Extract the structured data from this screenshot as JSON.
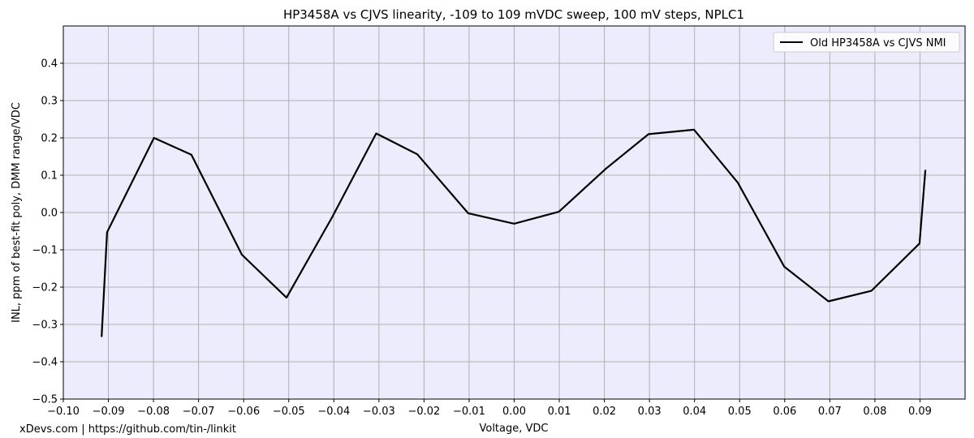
{
  "chart_data": {
    "type": "line",
    "title": "HP3458A vs CJVS linearity, -109 to 109 mVDC sweep, 100 mV steps, NPLC1",
    "xlabel": "Voltage, VDC",
    "ylabel": "INL, ppm of best-fit poly, DMM range/VDC",
    "xlim": [
      -0.1,
      0.1
    ],
    "ylim": [
      -0.5,
      0.5
    ],
    "xticks": [
      "−0.10",
      "−0.09",
      "−0.08",
      "−0.07",
      "−0.06",
      "−0.05",
      "−0.04",
      "−0.03",
      "−0.02",
      "−0.01",
      "0.00",
      "0.01",
      "0.02",
      "0.03",
      "0.04",
      "0.05",
      "0.06",
      "0.07",
      "0.08",
      "0.09"
    ],
    "xtick_values": [
      -0.1,
      -0.09,
      -0.08,
      -0.07,
      -0.06,
      -0.05,
      -0.04,
      -0.03,
      -0.02,
      -0.01,
      0.0,
      0.01,
      0.02,
      0.03,
      0.04,
      0.05,
      0.06,
      0.07,
      0.08,
      0.09
    ],
    "yticks": [
      "−0.5",
      "−0.4",
      "−0.3",
      "−0.2",
      "−0.1",
      "0.0",
      "0.1",
      "0.2",
      "0.3",
      "0.4"
    ],
    "ytick_values": [
      -0.5,
      -0.4,
      -0.3,
      -0.2,
      -0.1,
      0.0,
      0.1,
      0.2,
      0.3,
      0.4
    ],
    "grid": true,
    "legend_position": "top-right",
    "series": [
      {
        "name": "Old HP3458A vs CJVS NMI",
        "color": "#000000",
        "x": [
          -0.0915,
          -0.0903,
          -0.0799,
          -0.0716,
          -0.0604,
          -0.0505,
          -0.0404,
          -0.0306,
          -0.0215,
          -0.0102,
          0.0,
          0.0099,
          0.0204,
          0.0298,
          0.0399,
          0.0496,
          0.0599,
          0.0697,
          0.0792,
          0.0899,
          0.0912
        ],
        "y": [
          -0.333,
          -0.053,
          0.2,
          0.155,
          -0.113,
          -0.228,
          -0.013,
          0.212,
          0.156,
          -0.002,
          -0.03,
          0.002,
          0.118,
          0.21,
          0.222,
          0.08,
          -0.145,
          -0.238,
          -0.21,
          -0.083,
          0.114
        ]
      }
    ],
    "annotations": [
      "xDevs.com | https://github.com/tin-/linkit"
    ]
  }
}
